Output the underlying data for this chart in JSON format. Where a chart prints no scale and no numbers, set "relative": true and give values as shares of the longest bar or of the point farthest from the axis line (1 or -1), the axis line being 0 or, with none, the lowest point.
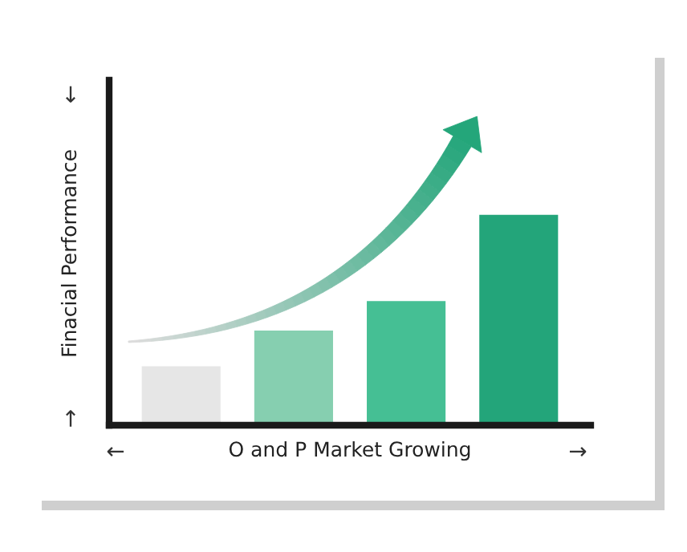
{
  "chart_data": {
    "type": "bar",
    "relative": true,
    "xlabel": "O and P Market Growing",
    "ylabel": "Finacial Performance",
    "categories": [
      null,
      null,
      null,
      null
    ],
    "values": [
      0.28,
      0.45,
      0.59,
      1
    ],
    "colors": [
      "#e6e6e6",
      "#86cfb0",
      "#45bf94",
      "#23a57a"
    ],
    "annotations": [
      "←",
      "→",
      "↓",
      "↑"
    ],
    "grid": false,
    "legend": false
  }
}
